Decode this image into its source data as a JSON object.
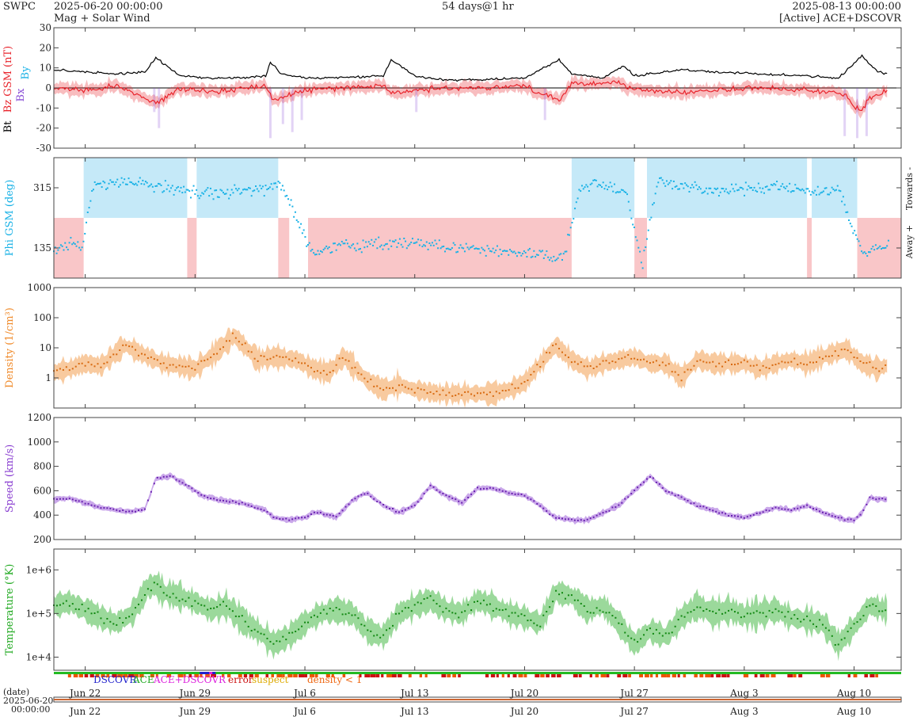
{
  "header": {
    "source": "SWPC",
    "start": "2025-06-20 00:00:00",
    "mode": "Mag + Solar Wind",
    "span": "54 days@1 hr",
    "end": "2025-08-13 00:00:00",
    "spacecraft": "[Active] ACE+DSCOVR"
  },
  "colors": {
    "bt": "#000000",
    "bz": "#e8242c",
    "bx": "#8a4fd6",
    "by": "#1ab2e6",
    "phi_toward": "#c5e9f8",
    "phi_away": "#f9c6c8",
    "density": "#f08a2a",
    "speed": "#8a3fd1",
    "temperature": "#22aa22"
  },
  "legend": {
    "dscovr": "DSCOVR",
    "ace": "ACE",
    "ace_dscovr": "ACE+DSCOVR",
    "error": "error",
    "suspect": "suspect",
    "density_low": "density < 1"
  },
  "timeline": {
    "label_date": "(date)",
    "label_start": "2025-06-20",
    "label_time": "00:00:00"
  },
  "chart_data": {
    "type": "line",
    "x_axis": {
      "unit": "days since 2025-06-20 00:00",
      "range_days": [
        0,
        54
      ],
      "tick_days": [
        2,
        9,
        16,
        23,
        30,
        37,
        44,
        51
      ],
      "tick_labels": [
        "Jun 22",
        "Jun 29",
        "Jul 6",
        "Jul 13",
        "Jul 20",
        "Jul 27",
        "Aug 3",
        "Aug 10"
      ]
    },
    "panels": [
      {
        "id": "mag",
        "ylabel": "Bt  Bz GSM (nT)  Bx  By",
        "ylabel_parts": [
          "Bt",
          "Bz GSM (nT)",
          "Bx",
          "By"
        ],
        "ylim": [
          -30,
          30
        ],
        "ticks": [
          30,
          20,
          10,
          0,
          -10,
          -20,
          -30
        ],
        "tick_labels": [
          "30",
          "20",
          "10",
          "0",
          "-10",
          "-20",
          "-30"
        ],
        "series": [
          {
            "name": "Bt",
            "x": [
              0,
              2,
              4,
              5.8,
              6.5,
              8,
              10,
              12,
              13.5,
              13.8,
              14.5,
              16,
              18,
              21,
              21.5,
              23,
              24,
              25,
              27,
              30,
              32.2,
              33,
              35,
              36.3,
              37,
              40,
              42,
              45,
              48,
              50,
              50.7,
              51.5,
              52.5,
              53
            ],
            "y": [
              9,
              8,
              7,
              8,
              15,
              6,
              5,
              5,
              6,
              13,
              7,
              5,
              5,
              6,
              14,
              6,
              5,
              4,
              4,
              5,
              14,
              7,
              5,
              11,
              6,
              9,
              8,
              7,
              6,
              5,
              10,
              16,
              8,
              7
            ]
          },
          {
            "name": "Bz GSM",
            "x": [
              0,
              2,
              4,
              5.8,
              6.5,
              8,
              10,
              13.5,
              14,
              16,
              18,
              21,
              21.5,
              23,
              25,
              28,
              30,
              32.2,
              33,
              36,
              37,
              40,
              45,
              48,
              50.5,
              51,
              51.5,
              52,
              53
            ],
            "y": [
              0,
              -1,
              1,
              -5,
              -8,
              0,
              -2,
              1,
              -6,
              -1,
              0,
              1,
              -3,
              -1,
              0,
              0,
              1,
              -6,
              2,
              3,
              -1,
              -2,
              0,
              -1,
              -3,
              -9,
              -11,
              -5,
              -2
            ]
          }
        ]
      },
      {
        "id": "phi",
        "ylabel": "Phi GSM (deg)",
        "right_labels": [
          "Towards -",
          "Away +"
        ],
        "ylim": [
          45,
          405
        ],
        "ticks": [
          315,
          135
        ],
        "tick_labels": [
          "315",
          "135"
        ],
        "sectors": [
          {
            "from": 0.0,
            "to": 1.9,
            "sector": "away"
          },
          {
            "from": 1.9,
            "to": 8.5,
            "sector": "toward"
          },
          {
            "from": 8.5,
            "to": 9.1,
            "sector": "away"
          },
          {
            "from": 9.1,
            "to": 14.3,
            "sector": "toward"
          },
          {
            "from": 14.3,
            "to": 15.0,
            "sector": "away"
          },
          {
            "from": 16.2,
            "to": 33.0,
            "sector": "away"
          },
          {
            "from": 33.0,
            "to": 37.0,
            "sector": "toward"
          },
          {
            "from": 37.0,
            "to": 37.8,
            "sector": "away"
          },
          {
            "from": 37.8,
            "to": 48.0,
            "sector": "toward"
          },
          {
            "from": 48.0,
            "to": 48.3,
            "sector": "away"
          },
          {
            "from": 48.3,
            "to": 51.2,
            "sector": "toward"
          },
          {
            "from": 51.2,
            "to": 54.0,
            "sector": "away"
          }
        ],
        "series": [
          {
            "name": "Phi GSM",
            "x": [
              0,
              1,
              1.8,
              2.5,
              4,
              6,
              8,
              9.5,
              11,
              13,
              14.5,
              16.5,
              18,
              20,
              22,
              24,
              26,
              28,
              30,
              32.5,
              33.5,
              35,
              36.5,
              37.5,
              38.5,
              40,
              42,
              44,
              46,
              48.5,
              50,
              51.5,
              52.5,
              53
            ],
            "y": [
              130,
              145,
              130,
              320,
              330,
              325,
              310,
              300,
              300,
              310,
              320,
              120,
              140,
              145,
              150,
              145,
              135,
              130,
              120,
              105,
              310,
              330,
              300,
              80,
              335,
              320,
              305,
              310,
              320,
              300,
              310,
              120,
              135,
              140
            ]
          }
        ]
      },
      {
        "id": "density",
        "ylabel": "Density (1/cm³)",
        "log": true,
        "ylim": [
          0.1,
          1000
        ],
        "ticks": [
          1000,
          100,
          10,
          1
        ],
        "tick_labels": [
          "1000",
          "100",
          "10",
          "1"
        ],
        "series": [
          {
            "name": "Density",
            "x": [
              0,
              1,
              2,
              3,
              4.5,
              6,
              7,
              8,
              9,
              10,
              11.5,
              13,
              14,
              15.5,
              16.5,
              17.5,
              18.5,
              20,
              21,
              22,
              23,
              24.5,
              25.5,
              26.5,
              27,
              28,
              29,
              30,
              31,
              32,
              33,
              34,
              35,
              37,
              38,
              39,
              40,
              41,
              42,
              43,
              44,
              45,
              46,
              47,
              48,
              49,
              50.5,
              51.5,
              52.5,
              53
            ],
            "y": [
              1.5,
              2,
              3,
              2.5,
              12,
              5,
              3,
              2.5,
              2,
              5,
              25,
              4,
              5,
              4,
              2,
              1.5,
              5,
              0.8,
              0.4,
              0.6,
              0.4,
              0.3,
              0.3,
              0.3,
              0.3,
              0.3,
              0.4,
              0.7,
              3,
              12,
              4,
              2,
              3,
              5,
              3,
              3,
              1,
              4,
              3,
              3,
              3,
              2,
              3,
              4,
              3,
              5,
              9,
              3,
              2,
              2.5
            ]
          }
        ]
      },
      {
        "id": "speed",
        "ylabel": "Speed (km/s)",
        "ylim": [
          200,
          1200
        ],
        "ticks": [
          1200,
          1000,
          800,
          600,
          400,
          200
        ],
        "tick_labels": [
          "1200",
          "1000",
          "800",
          "600",
          "400",
          "200"
        ],
        "series": [
          {
            "name": "Speed",
            "x": [
              0,
              1,
              2,
              3,
              4,
              5,
              5.8,
              6.5,
              7.5,
              8.5,
              9.5,
              10.5,
              12,
              13.5,
              14,
              15,
              16,
              16.5,
              17,
              18,
              19,
              19.5,
              20,
              21,
              22,
              23,
              24,
              25,
              26,
              27,
              28,
              29,
              30,
              31,
              31.5,
              32,
              33,
              34,
              35,
              36,
              37,
              38,
              39,
              40,
              41,
              42,
              43,
              44,
              45,
              46,
              47,
              48,
              49,
              50,
              50.5,
              51,
              51.5,
              52,
              53
            ],
            "y": [
              530,
              540,
              500,
              460,
              440,
              430,
              450,
              700,
              720,
              640,
              560,
              520,
              500,
              440,
              380,
              360,
              380,
              420,
              420,
              380,
              520,
              560,
              580,
              480,
              420,
              480,
              640,
              560,
              500,
              620,
              620,
              580,
              560,
              480,
              420,
              380,
              360,
              360,
              420,
              480,
              600,
              720,
              600,
              540,
              480,
              440,
              400,
              380,
              420,
              460,
              440,
              480,
              420,
              380,
              360,
              360,
              420,
              540,
              530
            ]
          }
        ]
      },
      {
        "id": "temperature",
        "ylabel": "Temperature (°K)",
        "log": true,
        "ylim": [
          5000,
          3000000
        ],
        "ticks": [
          1000000,
          100000,
          10000
        ],
        "tick_labels": [
          "1e+6",
          "1e+5",
          "1e+4"
        ],
        "series": [
          {
            "name": "Temperature",
            "x": [
              0,
              1,
              2,
              3,
              4,
              5,
              6,
              6.5,
              7,
              8,
              9,
              10,
              11,
              12,
              13,
              14,
              15,
              16,
              17,
              18,
              19,
              20,
              21,
              22,
              23,
              24,
              25,
              26,
              27,
              28,
              29,
              30,
              31,
              32,
              33,
              34,
              35,
              36,
              37,
              38,
              39,
              40,
              41,
              42,
              43,
              44,
              45,
              46,
              47,
              48,
              49,
              50,
              51,
              52,
              53
            ],
            "y": [
              150000,
              180000,
              120000,
              80000,
              60000,
              100000,
              400000,
              450000,
              300000,
              250000,
              180000,
              120000,
              150000,
              70000,
              40000,
              20000,
              30000,
              60000,
              100000,
              120000,
              100000,
              40000,
              30000,
              100000,
              150000,
              200000,
              120000,
              100000,
              200000,
              150000,
              100000,
              80000,
              60000,
              300000,
              250000,
              120000,
              150000,
              60000,
              20000,
              40000,
              30000,
              80000,
              150000,
              100000,
              120000,
              90000,
              100000,
              120000,
              80000,
              70000,
              60000,
              20000,
              50000,
              150000,
              120000
            ]
          }
        ]
      }
    ],
    "status_bar": {
      "segments": [
        {
          "from": 0,
          "to": 54,
          "source": "ACE"
        },
        {
          "from": 9.3,
          "to": 10.3,
          "source": "DSCOVR"
        },
        {
          "from": 9.9,
          "to": 10.0,
          "source": "ACE+DSCOVR"
        }
      ]
    }
  }
}
